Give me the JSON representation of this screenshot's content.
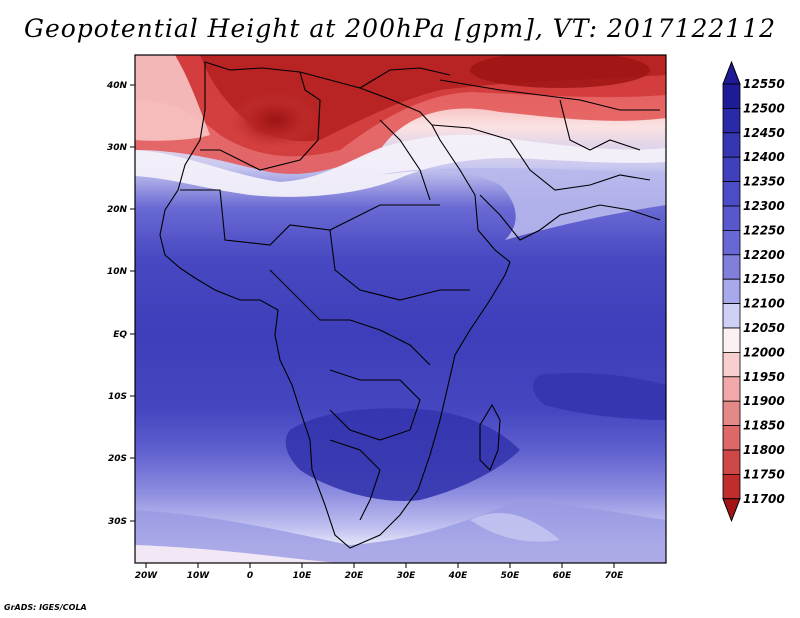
{
  "title": "Geopotential Height at 200hPa [gpm], VT: 2017122112",
  "credit": "GrADS: IGES/COLA",
  "map": {
    "lat_labels": [
      "40N",
      "30N",
      "20N",
      "10N",
      "EQ",
      "10S",
      "20S",
      "30S"
    ],
    "lon_labels": [
      "20W",
      "10W",
      "0",
      "10E",
      "20E",
      "30E",
      "40E",
      "50E",
      "60E",
      "70E"
    ]
  },
  "colorbar": {
    "levels": [
      "12550",
      "12500",
      "12450",
      "12400",
      "12350",
      "12300",
      "12250",
      "12200",
      "12150",
      "12100",
      "12050",
      "12000",
      "11950",
      "11900",
      "11850",
      "11800",
      "11750",
      "11700"
    ],
    "colors": [
      "#1f1a96",
      "#2a2aa8",
      "#3636b2",
      "#4040bc",
      "#4c4cc6",
      "#5858cc",
      "#6868d4",
      "#8080dc",
      "#a8a8ec",
      "#d0d0f6",
      "#fdf0f0",
      "#f9cece",
      "#f0a8a8",
      "#e58888",
      "#dc6868",
      "#cf4848",
      "#c12c2c",
      "#a31515"
    ]
  }
}
